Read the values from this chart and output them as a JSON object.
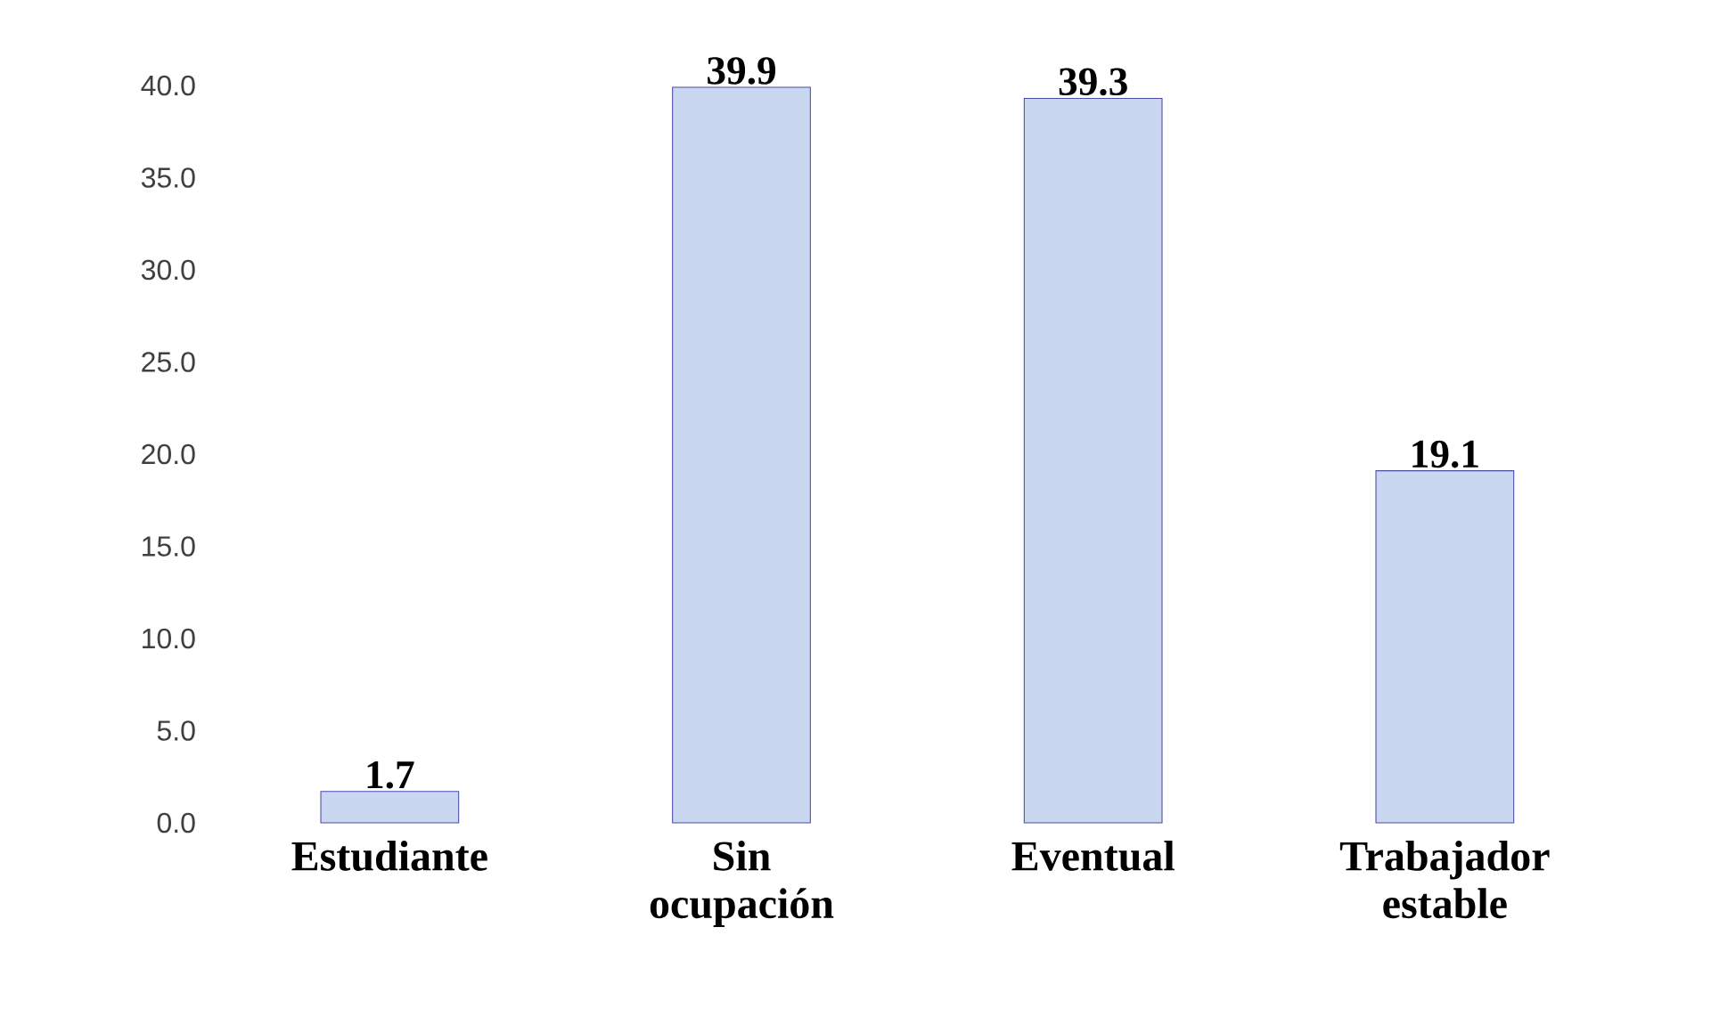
{
  "chart_data": {
    "type": "bar",
    "categories": [
      "Estudiante",
      "Sin ocupación",
      "Eventual",
      "Trabajador estable"
    ],
    "values": [
      1.7,
      39.9,
      39.3,
      19.1
    ],
    "color": "#c9d7f0",
    "ylim": [
      0,
      40
    ],
    "yticks": [
      {
        "value": 0,
        "label": "0.0"
      },
      {
        "value": 5,
        "label": "5.0"
      },
      {
        "value": 10,
        "label": "10.0"
      },
      {
        "value": 15,
        "label": "15.0"
      },
      {
        "value": 20,
        "label": "20.0"
      },
      {
        "value": 25,
        "label": "25.0"
      },
      {
        "value": 30,
        "label": "30.0"
      },
      {
        "value": 35,
        "label": "35.0"
      },
      {
        "value": 40,
        "label": "40.0"
      }
    ],
    "data_labels": true,
    "grid": false
  }
}
